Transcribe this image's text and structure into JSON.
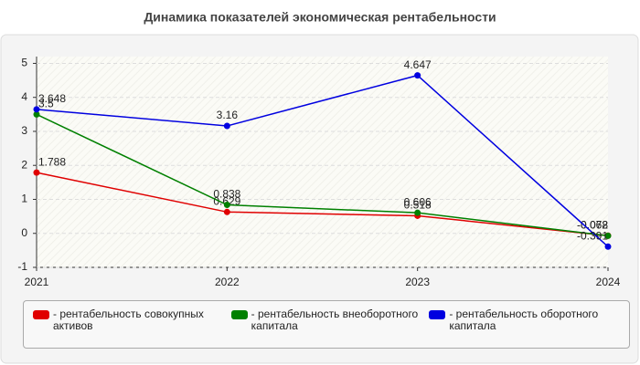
{
  "chart_data": {
    "type": "line",
    "title": "Динамика показателей экономическая рентабельности",
    "categories": [
      "2021",
      "2022",
      "2023",
      "2024"
    ],
    "series": [
      {
        "name": "- рентабельность совокупных активов",
        "color": "#e00000",
        "values": [
          1.788,
          0.629,
          0.518,
          -0.068
        ]
      },
      {
        "name": "- рентабельность внеоборотного капитала",
        "color": "#008000",
        "values": [
          3.5,
          0.838,
          0.606,
          -0.072
        ]
      },
      {
        "name": "- рентабельность оборотного капитала",
        "color": "#0000e0",
        "values": [
          3.648,
          3.16,
          4.647,
          -0.391
        ]
      }
    ],
    "ylim": [
      -1,
      5.2
    ],
    "yticks": [
      -1,
      0,
      1,
      2,
      3,
      4,
      5
    ],
    "grid": true
  }
}
